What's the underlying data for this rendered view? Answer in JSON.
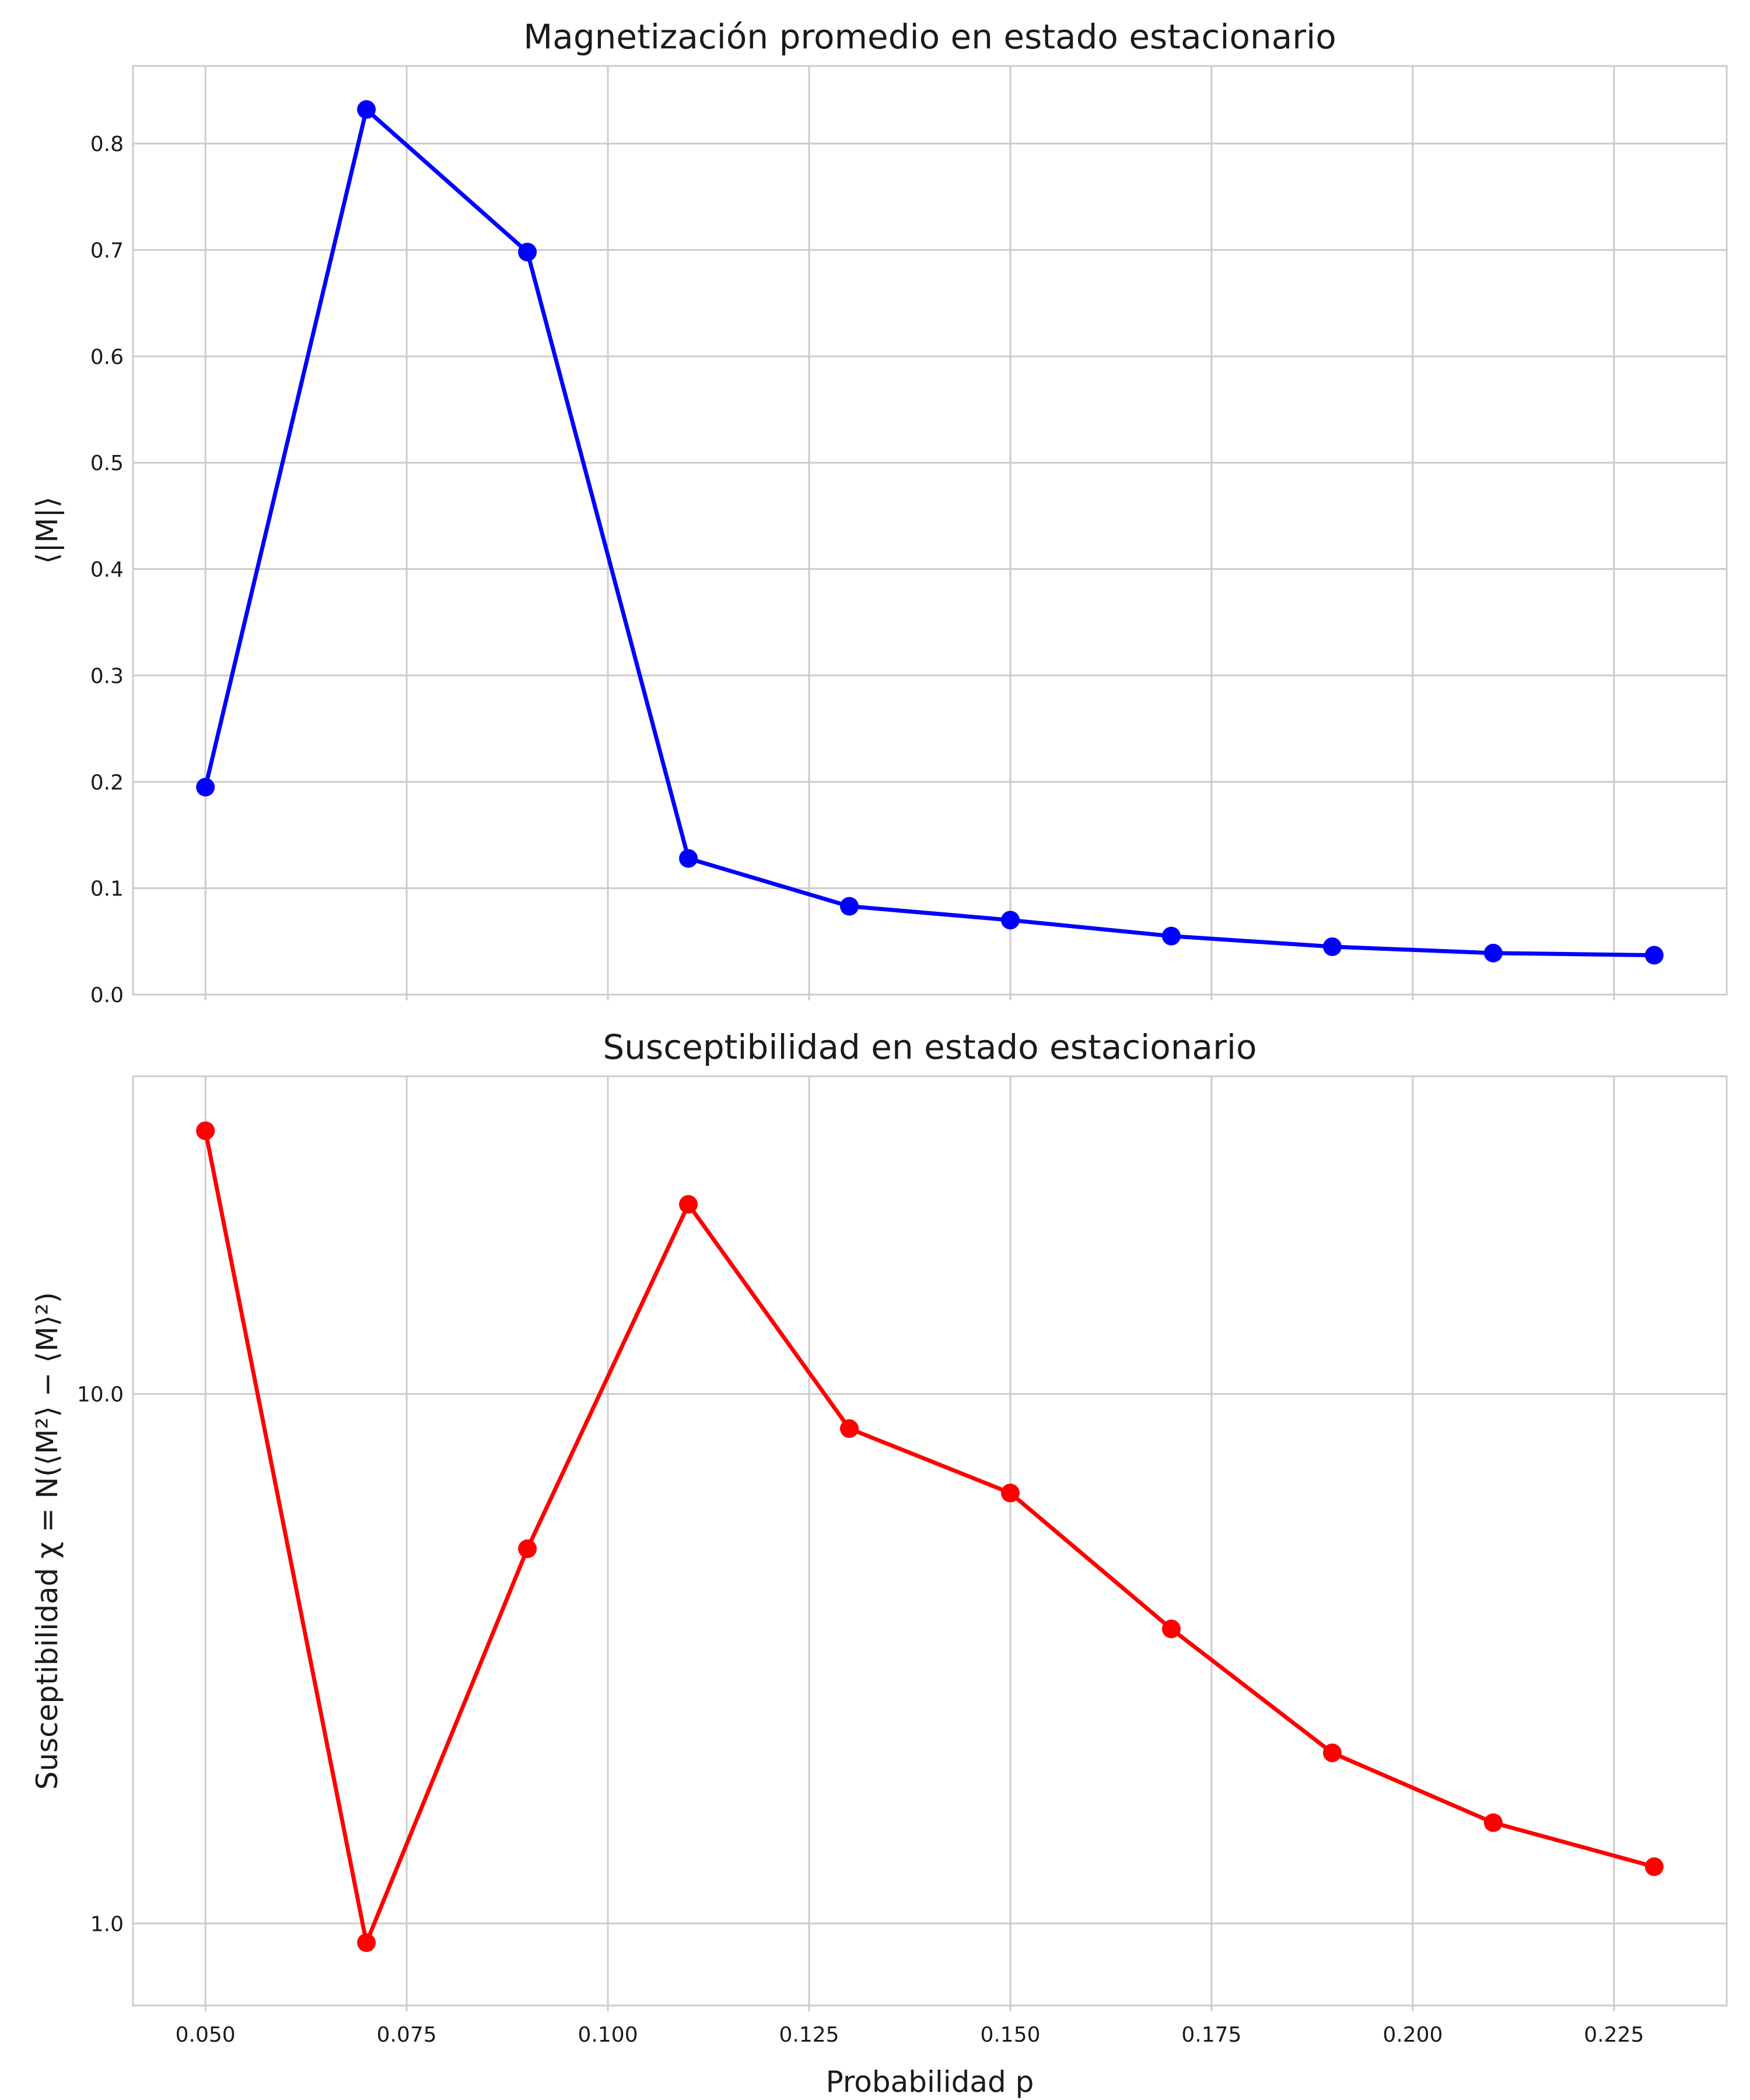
{
  "chart_data": [
    {
      "type": "line",
      "title": "Magnetización promedio en estado estacionario",
      "xlabel": "",
      "ylabel": "⟨|M|⟩",
      "x": [
        0.05,
        0.07,
        0.09,
        0.11,
        0.13,
        0.15,
        0.17,
        0.19,
        0.21,
        0.23
      ],
      "series": [
        {
          "color": "#0000ff",
          "values": [
            0.195,
            0.832,
            0.698,
            0.128,
            0.083,
            0.07,
            0.055,
            0.045,
            0.039,
            0.037
          ]
        }
      ],
      "xlim": [
        0.041,
        0.239
      ],
      "ylim": [
        0.0,
        0.873
      ],
      "yticks": [
        0.0,
        0.1,
        0.2,
        0.3,
        0.4,
        0.5,
        0.6,
        0.7,
        0.8
      ],
      "ytick_labels": [
        "0.0",
        "0.1",
        "0.2",
        "0.3",
        "0.4",
        "0.5",
        "0.6",
        "0.7",
        "0.8"
      ],
      "xticks": [
        0.05,
        0.075,
        0.1,
        0.125,
        0.15,
        0.175,
        0.2,
        0.225
      ],
      "xtick_labels": [],
      "yscale": "linear",
      "grid": true
    },
    {
      "type": "line",
      "title": "Susceptibilidad en estado estacionario",
      "xlabel": "Probabilidad p",
      "ylabel": "Susceptibilidad χ = N(⟨M²⟩ − ⟨M⟩²)",
      "x": [
        0.05,
        0.07,
        0.09,
        0.11,
        0.13,
        0.15,
        0.17,
        0.19,
        0.21,
        0.23
      ],
      "series": [
        {
          "color": "#ff0000",
          "values": [
            31.4,
            0.92,
            5.1,
            22.8,
            8.6,
            6.5,
            3.6,
            2.1,
            1.55,
            1.28
          ]
        }
      ],
      "xlim": [
        0.041,
        0.239
      ],
      "ylim": [
        0.7,
        39.8
      ],
      "yticks": [
        1.0,
        10.0
      ],
      "ytick_labels": [
        "1.0",
        "10.0"
      ],
      "xticks": [
        0.05,
        0.075,
        0.1,
        0.125,
        0.15,
        0.175,
        0.2,
        0.225
      ],
      "xtick_labels": [
        "0.050",
        "0.075",
        "0.100",
        "0.125",
        "0.150",
        "0.175",
        "0.200",
        "0.225"
      ],
      "yscale": "log",
      "grid": true
    }
  ]
}
